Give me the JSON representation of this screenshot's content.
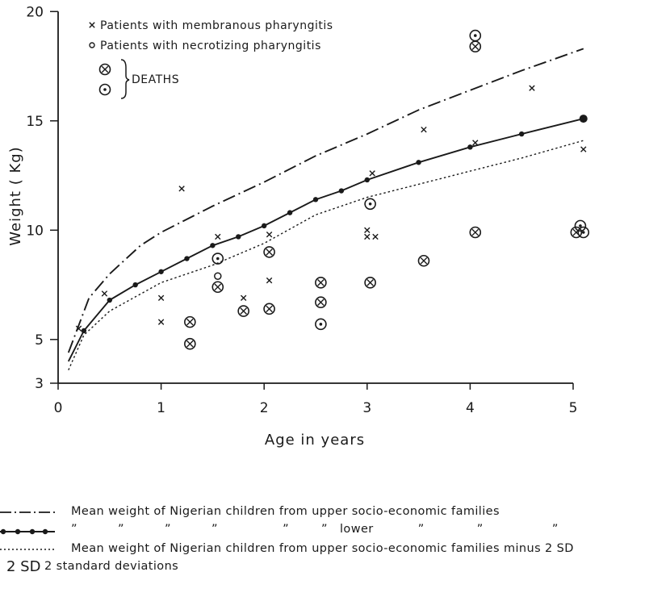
{
  "chart_data": {
    "type": "scatter",
    "xlabel": "Age in years",
    "ylabel": "Weight ( Kg)",
    "xlim": [
      0,
      5
    ],
    "ylim": [
      3,
      20
    ],
    "x_ticks": [
      "0",
      "1",
      "2",
      "3",
      "4",
      "5"
    ],
    "y_ticks": [
      "3",
      "5",
      "10",
      "15",
      "20"
    ],
    "y_tick_values": [
      3,
      5,
      10,
      15,
      20
    ],
    "legend": {
      "membranous": "Patients with  membranous  pharyngitis",
      "necrotizing": "Patients with  necrotizing  pharyngitis",
      "deaths": "DEATHS"
    },
    "series": [
      {
        "name": "Mean weight of Nigerian children from upper socio-economic families",
        "style": "dash-dot",
        "x": [
          0.1,
          0.3,
          0.5,
          0.8,
          1.0,
          1.5,
          2.0,
          2.5,
          3.0,
          3.5,
          4.0,
          4.5,
          5.1
        ],
        "y": [
          4.4,
          6.9,
          8.0,
          9.3,
          9.9,
          11.1,
          12.2,
          13.4,
          14.4,
          15.5,
          16.4,
          17.3,
          18.3
        ]
      },
      {
        "name": "Mean weight of Nigerian children from lower socio-economic families",
        "style": "solid-dots",
        "x": [
          0.1,
          0.25,
          0.5,
          0.75,
          1.0,
          1.25,
          1.5,
          1.75,
          2.0,
          2.25,
          2.5,
          2.75,
          3.0,
          3.5,
          4.0,
          4.5,
          5.1
        ],
        "y": [
          4.0,
          5.4,
          6.8,
          7.5,
          8.1,
          8.7,
          9.3,
          9.7,
          10.2,
          10.8,
          11.4,
          11.8,
          12.3,
          13.1,
          13.8,
          14.4,
          15.1
        ]
      },
      {
        "name": "Mean weight of Nigerian children from upper socio-economic families minus 2 SD",
        "style": "dotted",
        "x": [
          0.1,
          0.25,
          0.5,
          1.0,
          1.5,
          2.0,
          2.5,
          3.0,
          3.5,
          4.0,
          4.5,
          5.1
        ],
        "y": [
          3.6,
          5.2,
          6.3,
          7.6,
          8.4,
          9.4,
          10.7,
          11.5,
          12.1,
          12.7,
          13.3,
          14.1
        ]
      }
    ],
    "membranous": [
      {
        "x": 0.2,
        "y": 5.5
      },
      {
        "x": 0.45,
        "y": 7.1
      },
      {
        "x": 1.0,
        "y": 6.9
      },
      {
        "x": 1.0,
        "y": 5.8
      },
      {
        "x": 1.2,
        "y": 11.9
      },
      {
        "x": 1.55,
        "y": 9.7
      },
      {
        "x": 1.8,
        "y": 6.9
      },
      {
        "x": 2.05,
        "y": 9.8
      },
      {
        "x": 2.05,
        "y": 7.7
      },
      {
        "x": 3.05,
        "y": 12.6
      },
      {
        "x": 3.0,
        "y": 10.0
      },
      {
        "x": 3.0,
        "y": 9.7
      },
      {
        "x": 3.08,
        "y": 9.7
      },
      {
        "x": 3.55,
        "y": 14.6
      },
      {
        "x": 4.05,
        "y": 14.0
      },
      {
        "x": 4.6,
        "y": 16.5
      },
      {
        "x": 5.1,
        "y": 13.7
      }
    ],
    "necrotizing": [
      {
        "x": 1.55,
        "y": 7.9
      }
    ],
    "deaths_membranous": [
      {
        "x": 1.28,
        "y": 5.8
      },
      {
        "x": 1.28,
        "y": 4.8
      },
      {
        "x": 1.55,
        "y": 7.4
      },
      {
        "x": 1.8,
        "y": 6.3
      },
      {
        "x": 2.05,
        "y": 9.0
      },
      {
        "x": 2.05,
        "y": 6.4
      },
      {
        "x": 2.55,
        "y": 7.6
      },
      {
        "x": 2.55,
        "y": 6.7
      },
      {
        "x": 3.03,
        "y": 7.6
      },
      {
        "x": 3.55,
        "y": 8.6
      },
      {
        "x": 4.05,
        "y": 9.9
      },
      {
        "x": 4.05,
        "y": 18.4
      },
      {
        "x": 5.03,
        "y": 9.9
      }
    ],
    "deaths_necrotizing": [
      {
        "x": 1.55,
        "y": 8.7
      },
      {
        "x": 2.55,
        "y": 5.7
      },
      {
        "x": 3.03,
        "y": 11.2
      },
      {
        "x": 4.05,
        "y": 18.9
      },
      {
        "x": 5.07,
        "y": 10.2
      },
      {
        "x": 5.1,
        "y": 9.9
      }
    ]
  },
  "bottom_legend": {
    "row1": "Mean  weight  of  Nigerian  children  from  upper  socio-economic  families",
    "row2": "”          ”          ”          ”                ”        ”   lower           ”             ”                 ”",
    "row3": "Mean  weight  of  Nigerian  children  from  upper  socio-economic  families  minus  2 SD",
    "row4_symbol": "2 SD",
    "row4": "2  standard  deviations"
  }
}
